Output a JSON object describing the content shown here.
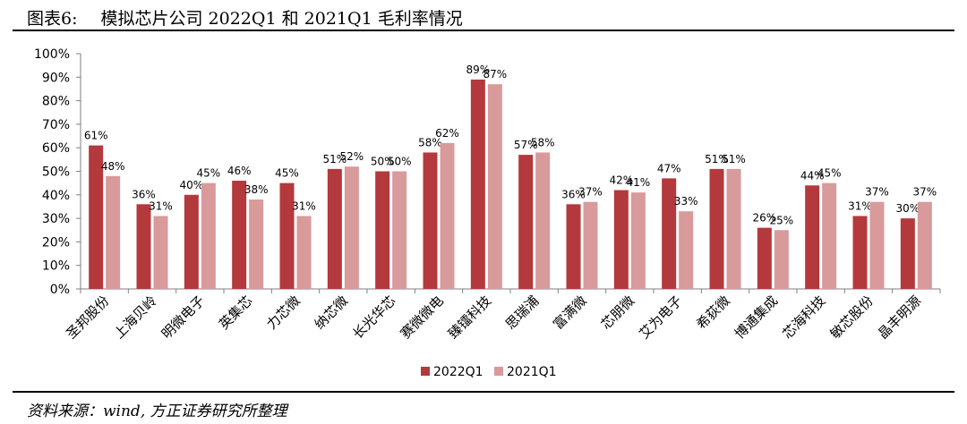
{
  "figure": {
    "number": "图表6:",
    "title": "模拟芯片公司 2022Q1 和 2021Q1 毛利率情况",
    "source": "资料来源：wind, 方正证券研究所整理"
  },
  "colors": {
    "series_2022": "#b4393c",
    "series_2021": "#d99a9b",
    "axis": "#7f7f7f"
  },
  "chart_data": {
    "type": "bar",
    "categories": [
      "圣邦股份",
      "上海贝岭",
      "明微电子",
      "英集芯",
      "力芯微",
      "纳芯微",
      "长光华芯",
      "赛微微电",
      "臻镭科技",
      "思瑞浦",
      "富满微",
      "芯朋微",
      "艾为电子",
      "希荻微",
      "博通集成",
      "芯海科技",
      "敏芯股份",
      "晶丰明源"
    ],
    "series": [
      {
        "name": "2022Q1",
        "values": [
          61,
          36,
          40,
          46,
          45,
          51,
          50,
          58,
          89,
          57,
          36,
          42,
          47,
          51,
          26,
          44,
          31,
          30
        ]
      },
      {
        "name": "2021Q1",
        "values": [
          48,
          31,
          45,
          38,
          31,
          52,
          50,
          62,
          87,
          58,
          37,
          41,
          33,
          51,
          25,
          45,
          37,
          37
        ]
      }
    ],
    "yticks": [
      "0%",
      "10%",
      "20%",
      "30%",
      "40%",
      "50%",
      "60%",
      "70%",
      "80%",
      "90%",
      "100%"
    ],
    "ylim": [
      0,
      100
    ],
    "legend_position": "bottom-center"
  }
}
